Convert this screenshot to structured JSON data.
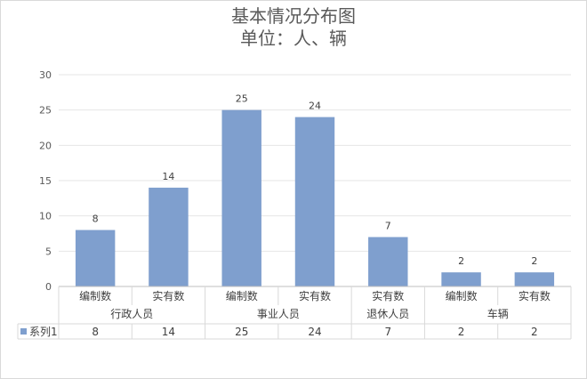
{
  "chart_data": {
    "type": "bar",
    "title": "基本情况分布图",
    "subtitle": "单位：人、辆",
    "categories": [
      "编制数",
      "实有数",
      "编制数",
      "实有数",
      "实有数",
      "编制数",
      "实有数"
    ],
    "groups": [
      {
        "label": "行政人员",
        "span": 2
      },
      {
        "label": "事业人员",
        "span": 2
      },
      {
        "label": "退休人员",
        "span": 1
      },
      {
        "label": "车辆",
        "span": 2
      }
    ],
    "series": [
      {
        "name": "系列1",
        "values": [
          8,
          14,
          25,
          24,
          7,
          2,
          2
        ],
        "color": "#7f9fce"
      }
    ],
    "ylim": [
      0,
      30
    ],
    "yticks": [
      0,
      5,
      10,
      15,
      20,
      25,
      30
    ],
    "grid": true,
    "data_table": true
  }
}
